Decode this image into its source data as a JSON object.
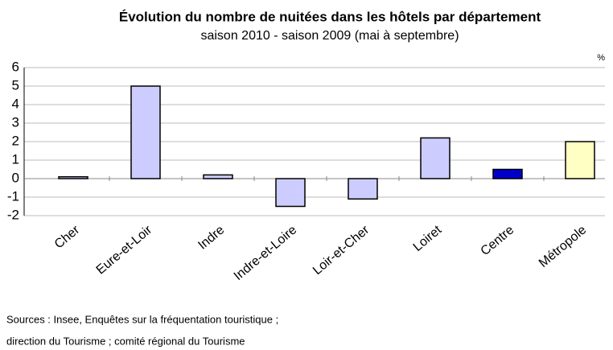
{
  "chart_data": {
    "type": "bar",
    "title": "Évolution du nombre de nuitées dans les hôtels par département",
    "subtitle": "saison 2010 - saison 2009 (mai à septembre)",
    "unit": "%",
    "categories": [
      "Cher",
      "Eure-et-Loir",
      "Indre",
      "Indre-et-Loire",
      "Loir-et-Cher",
      "Loiret",
      "Centre",
      "Métropole"
    ],
    "values": [
      0.1,
      5.0,
      0.2,
      -1.5,
      -1.1,
      2.2,
      0.5,
      2.0
    ],
    "colors": [
      "#ccccff",
      "#ccccff",
      "#ccccff",
      "#ccccff",
      "#ccccff",
      "#ccccff",
      "#0000cc",
      "#ffffc4"
    ],
    "ylim": [
      -2,
      6
    ],
    "yticks": [
      -2,
      -1,
      0,
      1,
      2,
      3,
      4,
      5,
      6
    ],
    "grid": true,
    "source": [
      "Sources : Insee, Enquêtes sur la fréquentation touristique ;",
      "direction du Tourisme ; comité régional du Tourisme"
    ]
  }
}
